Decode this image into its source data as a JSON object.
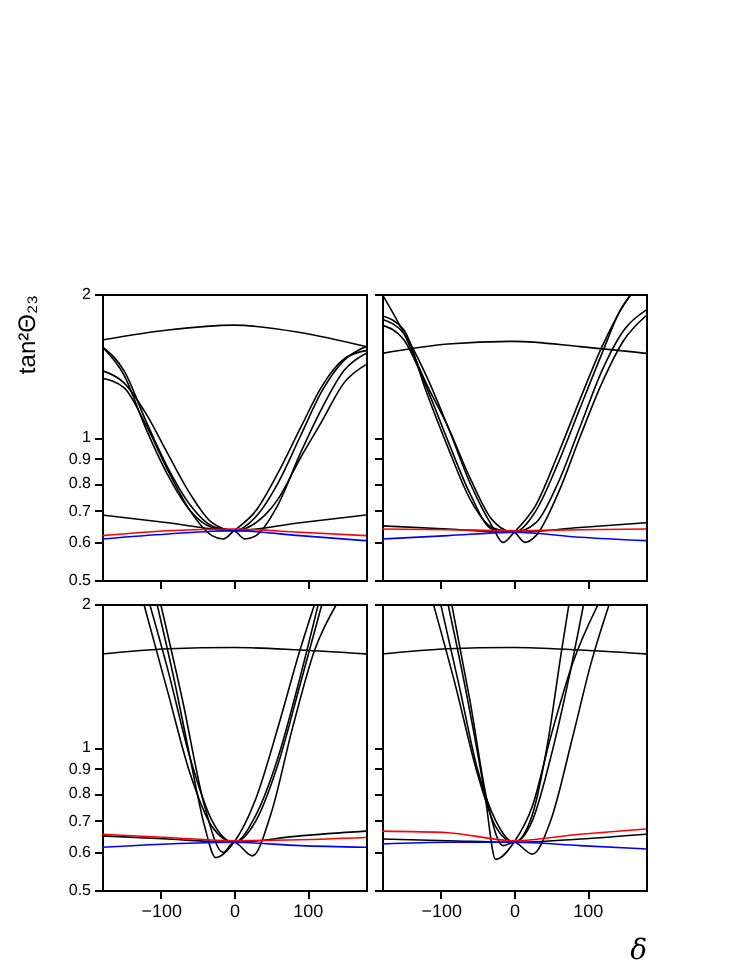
{
  "chart_data": [
    {
      "type": "line",
      "ylabel": "tan²Θ₂₃",
      "xlim": [
        -180,
        180
      ],
      "xticks": [
        -100,
        0,
        100
      ],
      "ylim": [
        0.5,
        2
      ],
      "yticks": [
        0.5,
        0.6,
        0.7,
        0.8,
        0.9,
        1,
        2
      ],
      "log": "y",
      "grid": false,
      "legend": false,
      "tick_labels": "y",
      "series": [
        {
          "color": "#000000",
          "x": [
            -180,
            -90,
            0,
            90,
            180
          ],
          "values": [
            1.6,
            1.68,
            1.72,
            1.66,
            1.55
          ]
        },
        {
          "color": "#000000",
          "x": [
            -180,
            -150,
            -120,
            -90,
            -60,
            -30,
            0,
            30,
            60,
            90,
            120,
            150,
            180
          ],
          "values": [
            1.55,
            1.38,
            1.08,
            0.86,
            0.72,
            0.65,
            0.635,
            0.68,
            0.8,
            1.0,
            1.25,
            1.45,
            1.55
          ]
        },
        {
          "color": "#000000",
          "x": [
            -180,
            -150,
            -120,
            -90,
            -60,
            -30,
            0,
            30,
            60,
            90,
            120,
            150,
            180
          ],
          "values": [
            1.38,
            1.3,
            1.12,
            0.92,
            0.76,
            0.66,
            0.635,
            0.66,
            0.74,
            0.9,
            1.08,
            1.3,
            1.42
          ]
        },
        {
          "color": "#000000",
          "x": [
            -180,
            -150,
            -120,
            -90,
            -60,
            -30,
            -15,
            0,
            30,
            60,
            90,
            120,
            150,
            180
          ],
          "values": [
            1.33,
            1.27,
            1.06,
            0.85,
            0.7,
            0.62,
            0.61,
            0.635,
            0.7,
            0.84,
            1.04,
            1.28,
            1.46,
            1.52
          ]
        },
        {
          "color": "#000000",
          "x": [
            -180,
            -150,
            -120,
            -90,
            -60,
            -30,
            0,
            15,
            30,
            60,
            90,
            120,
            150,
            180
          ],
          "values": [
            1.55,
            1.35,
            1.04,
            0.83,
            0.7,
            0.645,
            0.635,
            0.61,
            0.62,
            0.72,
            0.92,
            1.15,
            1.38,
            1.5
          ]
        },
        {
          "color": "#000000",
          "x": [
            -180,
            -90,
            0,
            90,
            180
          ],
          "values": [
            0.685,
            0.66,
            0.635,
            0.66,
            0.685
          ]
        },
        {
          "color": "#ff0000",
          "x": [
            -180,
            -90,
            0,
            90,
            180
          ],
          "values": [
            0.62,
            0.635,
            0.64,
            0.63,
            0.62
          ]
        },
        {
          "color": "#0000ff",
          "x": [
            -180,
            -90,
            0,
            90,
            180
          ],
          "values": [
            0.61,
            0.625,
            0.635,
            0.62,
            0.605
          ]
        }
      ]
    },
    {
      "type": "line",
      "xlim": [
        -180,
        180
      ],
      "xticks": [
        -100,
        0,
        100
      ],
      "ylim": [
        0.5,
        2
      ],
      "yticks": [
        0.5,
        0.6,
        0.7,
        0.8,
        0.9,
        1,
        2
      ],
      "log": "y",
      "grid": false,
      "legend": false,
      "tick_labels": false,
      "series": [
        {
          "color": "#000000",
          "x": [
            -180,
            -90,
            0,
            90,
            180
          ],
          "values": [
            1.5,
            1.57,
            1.59,
            1.55,
            1.5
          ]
        },
        {
          "color": "#000000",
          "x": [
            -180,
            -150,
            -120,
            -90,
            -60,
            -30,
            0,
            30,
            60,
            90,
            120,
            145,
            160
          ],
          "values": [
            2.0,
            1.65,
            1.3,
            1.05,
            0.82,
            0.67,
            0.63,
            0.7,
            0.88,
            1.15,
            1.5,
            1.85,
            2.0
          ]
        },
        {
          "color": "#000000",
          "x": [
            -180,
            -150,
            -120,
            -90,
            -60,
            -30,
            -15,
            0,
            30,
            60,
            90,
            120,
            150,
            160
          ],
          "values": [
            1.77,
            1.65,
            1.35,
            1.05,
            0.8,
            0.65,
            0.6,
            0.63,
            0.72,
            0.92,
            1.2,
            1.55,
            1.9,
            2.0
          ]
        },
        {
          "color": "#000000",
          "x": [
            -180,
            -150,
            -120,
            -90,
            -60,
            -30,
            0,
            15,
            30,
            60,
            90,
            120,
            150,
            180
          ],
          "values": [
            1.72,
            1.6,
            1.28,
            0.98,
            0.76,
            0.64,
            0.63,
            0.6,
            0.62,
            0.76,
            1.0,
            1.3,
            1.6,
            1.8
          ]
        },
        {
          "color": "#000000",
          "x": [
            -180,
            -150,
            -120,
            -90,
            -60,
            -30,
            0,
            30,
            60,
            90,
            120,
            150,
            180
          ],
          "values": [
            1.8,
            1.68,
            1.25,
            0.95,
            0.74,
            0.645,
            0.63,
            0.66,
            0.8,
            1.05,
            1.38,
            1.68,
            1.85
          ]
        },
        {
          "color": "#000000",
          "x": [
            -180,
            -90,
            0,
            90,
            180
          ],
          "values": [
            0.65,
            0.64,
            0.63,
            0.645,
            0.66
          ]
        },
        {
          "color": "#ff0000",
          "x": [
            -180,
            -90,
            0,
            90,
            180
          ],
          "values": [
            0.64,
            0.638,
            0.635,
            0.638,
            0.64
          ]
        },
        {
          "color": "#0000ff",
          "x": [
            -180,
            -90,
            0,
            90,
            180
          ],
          "values": [
            0.61,
            0.62,
            0.63,
            0.615,
            0.605
          ]
        }
      ]
    },
    {
      "type": "line",
      "xlim": [
        -180,
        180
      ],
      "xticks": [
        -100,
        0,
        100
      ],
      "ylim": [
        0.5,
        2
      ],
      "yticks": [
        0.5,
        0.6,
        0.7,
        0.8,
        0.9,
        1,
        2
      ],
      "log": "y",
      "grid": false,
      "legend": false,
      "series": [
        {
          "color": "#000000",
          "x": [
            -180,
            -90,
            0,
            90,
            180
          ],
          "values": [
            1.57,
            1.61,
            1.62,
            1.6,
            1.57
          ]
        },
        {
          "color": "#000000",
          "x": [
            -123,
            -90,
            -60,
            -30,
            0,
            30,
            60,
            90,
            115
          ],
          "values": [
            2.0,
            1.3,
            0.88,
            0.68,
            0.63,
            0.72,
            0.95,
            1.4,
            2.0
          ]
        },
        {
          "color": "#000000",
          "x": [
            -115,
            -90,
            -60,
            -30,
            0,
            30,
            60,
            90,
            120
          ],
          "values": [
            2.0,
            1.45,
            0.95,
            0.7,
            0.63,
            0.7,
            0.92,
            1.35,
            2.0
          ]
        },
        {
          "color": "#000000",
          "x": [
            -105,
            -80,
            -60,
            -40,
            -25,
            0,
            30,
            60,
            90,
            110
          ],
          "values": [
            2.0,
            1.35,
            0.95,
            0.68,
            0.585,
            0.63,
            0.78,
            1.1,
            1.6,
            2.0
          ]
        },
        {
          "color": "#000000",
          "x": [
            -100,
            -70,
            -40,
            -15,
            0,
            25,
            50,
            80,
            110,
            140
          ],
          "values": [
            2.0,
            1.25,
            0.75,
            0.6,
            0.63,
            0.59,
            0.72,
            1.1,
            1.6,
            2.0
          ]
        },
        {
          "color": "#000000",
          "x": [
            -180,
            -90,
            0,
            90,
            180
          ],
          "values": [
            0.65,
            0.64,
            0.63,
            0.65,
            0.665
          ]
        },
        {
          "color": "#ff0000",
          "x": [
            -180,
            -90,
            0,
            90,
            180
          ],
          "values": [
            0.655,
            0.645,
            0.635,
            0.638,
            0.645
          ]
        },
        {
          "color": "#0000ff",
          "x": [
            -180,
            -90,
            0,
            90,
            180
          ],
          "values": [
            0.615,
            0.625,
            0.63,
            0.62,
            0.615
          ]
        }
      ]
    },
    {
      "type": "line",
      "xlabel": "δ",
      "xlim": [
        -180,
        180
      ],
      "xticks": [
        -100,
        0,
        100
      ],
      "ylim": [
        0.5,
        2
      ],
      "yticks": [
        0.5,
        0.6,
        0.7,
        0.8,
        0.9,
        1,
        2
      ],
      "log": "y",
      "grid": false,
      "legend": false,
      "tick_labels": "x",
      "series": [
        {
          "color": "#000000",
          "x": [
            -180,
            -90,
            0,
            90,
            180
          ],
          "values": [
            1.57,
            1.61,
            1.62,
            1.6,
            1.57
          ]
        },
        {
          "color": "#000000",
          "x": [
            -110,
            -80,
            -50,
            -25,
            0,
            25,
            45,
            65,
            75
          ],
          "values": [
            2.0,
            1.35,
            0.88,
            0.68,
            0.63,
            0.72,
            1.0,
            1.6,
            2.0
          ]
        },
        {
          "color": "#000000",
          "x": [
            -100,
            -75,
            -50,
            -25,
            0,
            25,
            50,
            75,
            95
          ],
          "values": [
            2.0,
            1.35,
            0.9,
            0.7,
            0.63,
            0.7,
            0.95,
            1.4,
            2.0
          ]
        },
        {
          "color": "#000000",
          "x": [
            -90,
            -65,
            -40,
            -25,
            0,
            25,
            50,
            80,
            115
          ],
          "values": [
            2.0,
            1.3,
            0.8,
            0.58,
            0.63,
            0.75,
            1.05,
            1.5,
            2.0
          ]
        },
        {
          "color": "#000000",
          "x": [
            -85,
            -60,
            -35,
            -15,
            0,
            25,
            50,
            80,
            105,
            130
          ],
          "values": [
            2.0,
            1.25,
            0.75,
            0.62,
            0.63,
            0.595,
            0.7,
            1.05,
            1.5,
            2.0
          ]
        },
        {
          "color": "#000000",
          "x": [
            -180,
            -90,
            0,
            90,
            180
          ],
          "values": [
            0.64,
            0.635,
            0.63,
            0.64,
            0.655
          ]
        },
        {
          "color": "#ff0000",
          "x": [
            -180,
            -90,
            0,
            90,
            180
          ],
          "values": [
            0.665,
            0.66,
            0.635,
            0.655,
            0.672
          ]
        },
        {
          "color": "#0000ff",
          "x": [
            -180,
            -90,
            0,
            90,
            180
          ],
          "values": [
            0.625,
            0.63,
            0.63,
            0.62,
            0.61
          ]
        }
      ]
    }
  ]
}
